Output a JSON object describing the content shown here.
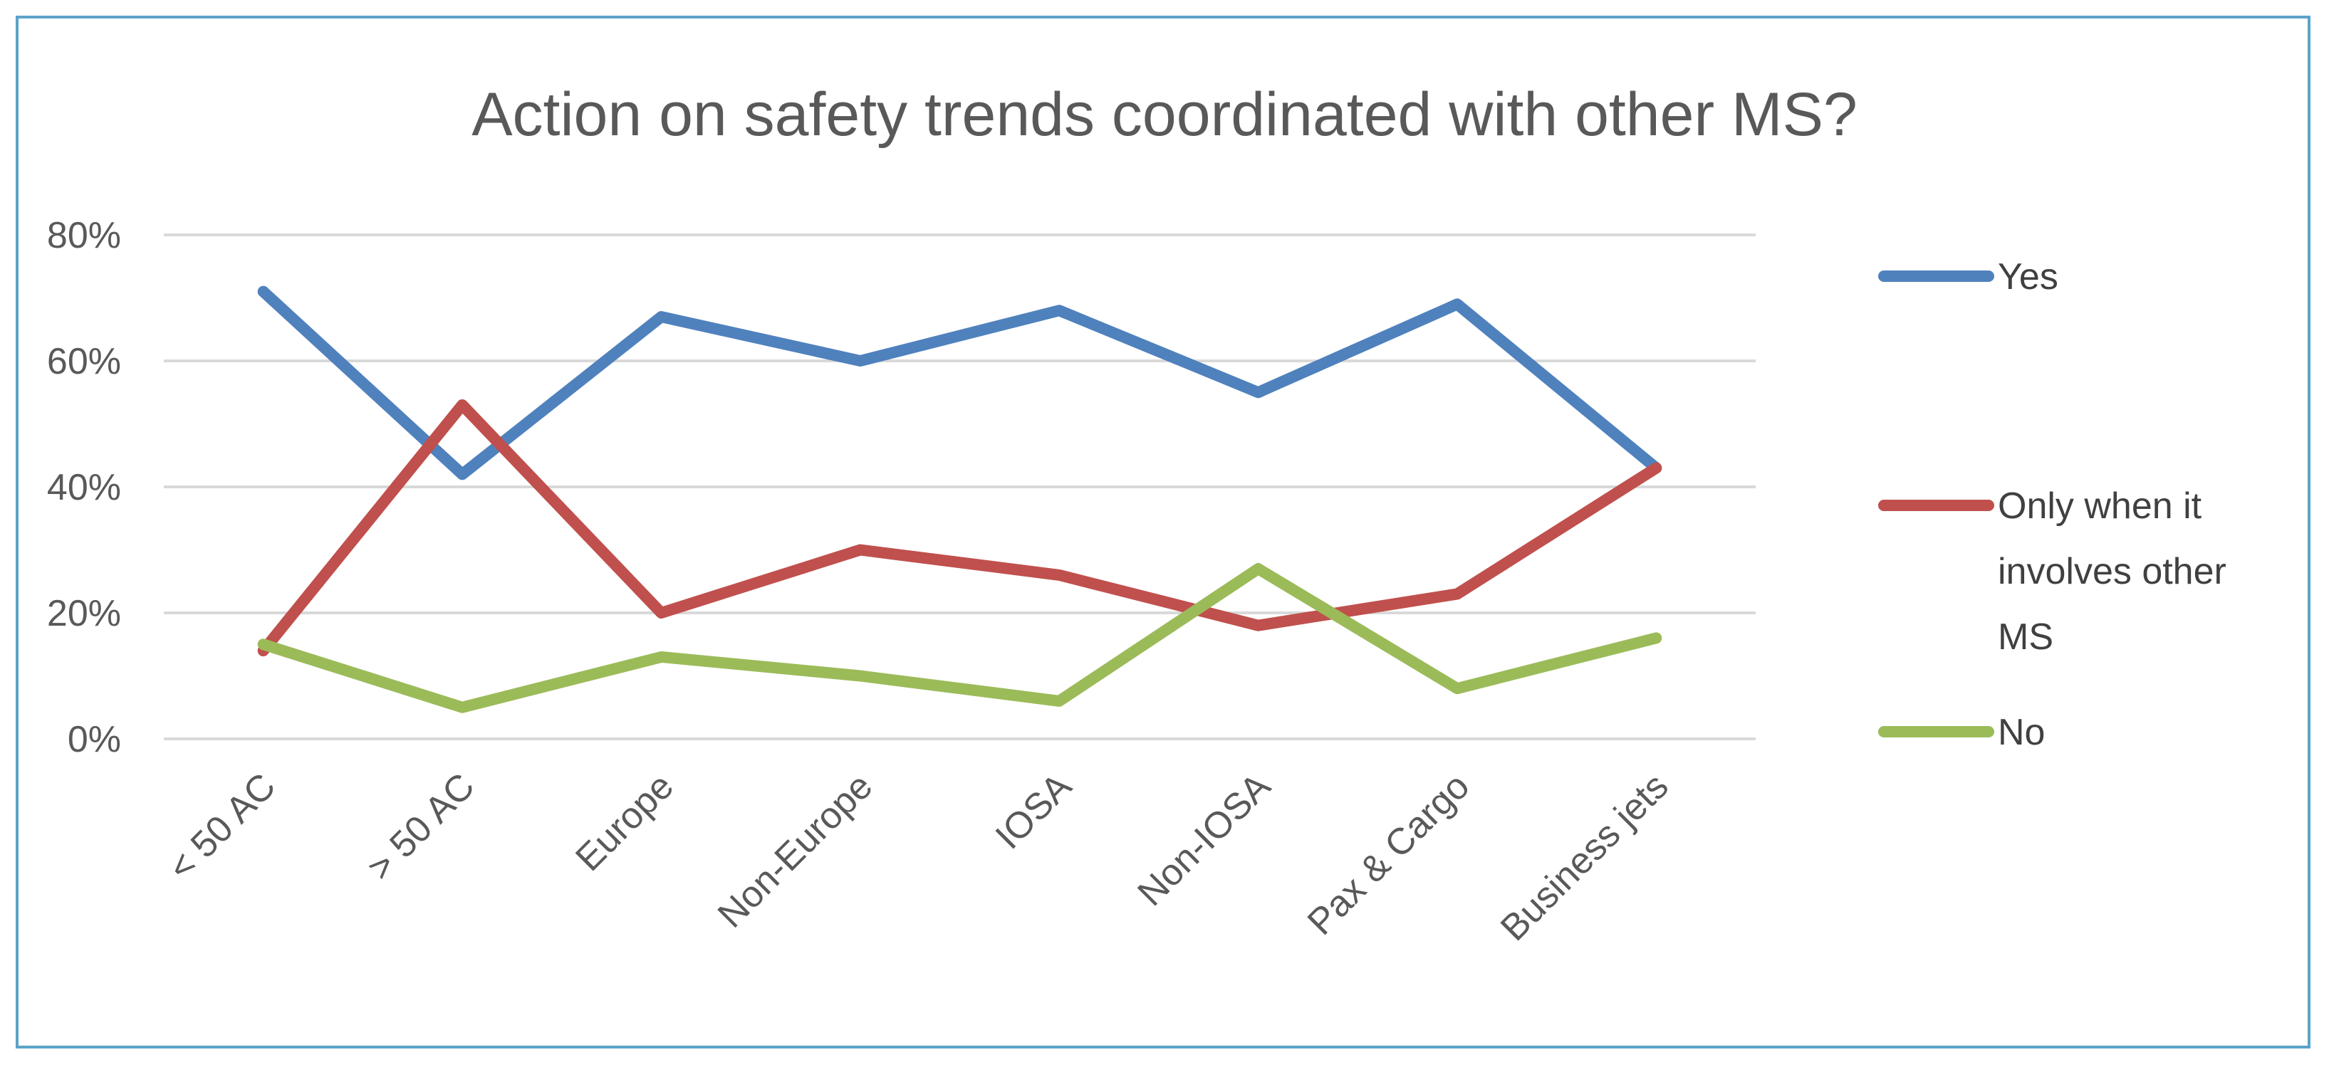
{
  "chart_data": {
    "type": "line",
    "title": "Action on safety trends coordinated with other MS?",
    "xlabel": "",
    "ylabel": "",
    "ylim": [
      0,
      80
    ],
    "yticks": [
      0,
      20,
      40,
      60,
      80
    ],
    "ytick_labels": [
      "0%",
      "20%",
      "40%",
      "60%",
      "80%"
    ],
    "categories": [
      "< 50 AC",
      "> 50 AC",
      "Europe",
      "Non-Europe",
      "IOSA",
      "Non-IOSA",
      "Pax & Cargo",
      "Business jets"
    ],
    "grid": true,
    "legend_position": "right",
    "series": [
      {
        "name": "Yes",
        "color": "#4f81bd",
        "values": [
          71,
          42,
          67,
          60,
          68,
          55,
          69,
          43
        ]
      },
      {
        "name": "Only when it involves other MS",
        "legend_lines": [
          "Only when it",
          "involves other",
          "MS"
        ],
        "color": "#c0504d",
        "values": [
          14,
          53,
          20,
          30,
          26,
          18,
          23,
          43
        ]
      },
      {
        "name": "No",
        "color": "#9bbb59",
        "values": [
          15,
          5,
          13,
          10,
          6,
          27,
          8,
          16
        ]
      }
    ]
  }
}
